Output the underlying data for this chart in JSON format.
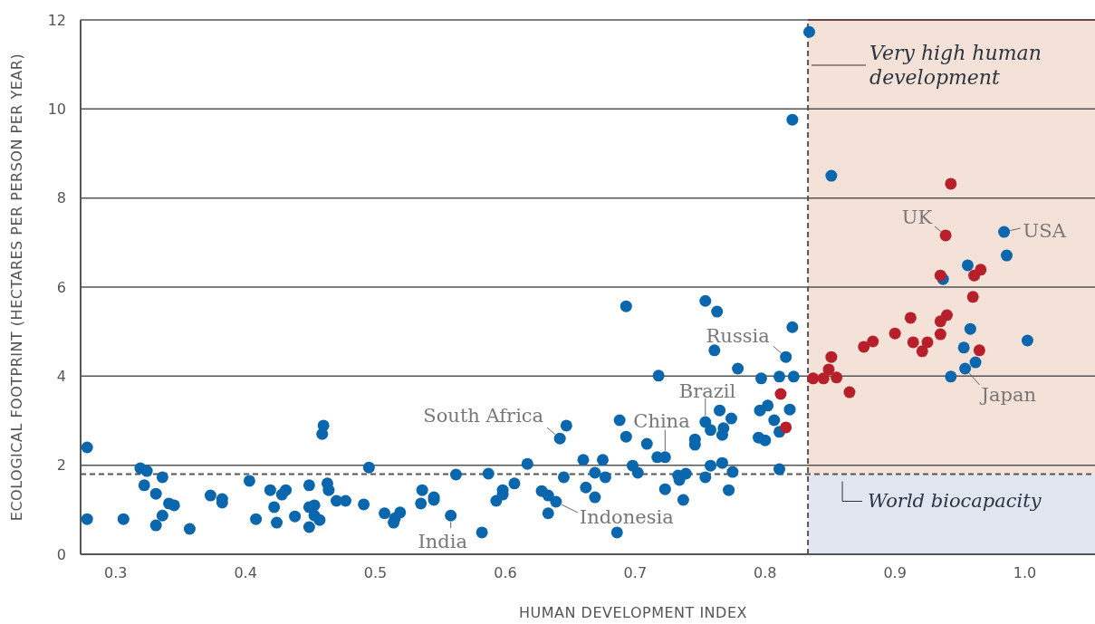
{
  "chart_data": {
    "type": "scatter",
    "xlabel": "HUMAN DEVELOPMENT INDEX",
    "ylabel": "ECOLOGICAL FOOTPRINT (HECTARES PER PERSON PER YEAR)",
    "xlim": [
      0.273,
      1.054
    ],
    "ylim": [
      0,
      12
    ],
    "xticks": [
      0.3,
      0.4,
      0.5,
      0.6,
      0.7,
      0.8,
      0.9,
      {
        "value": 1,
        "label": "1.0"
      }
    ],
    "yticks": [
      0,
      2,
      4,
      6,
      8,
      10,
      12
    ],
    "grid": "y",
    "marker": "circle",
    "series": [
      {
        "color": "#0a67ad",
        "x": [
          0.278,
          0.278,
          0.306,
          0.319,
          0.324,
          0.322,
          0.331,
          0.336,
          0.341,
          0.345,
          0.336,
          0.331,
          0.357,
          0.373,
          0.382,
          0.382,
          0.403,
          0.408,
          0.419,
          0.422,
          0.424,
          0.428,
          0.431,
          0.438,
          0.449,
          0.449,
          0.449,
          0.453,
          0.453,
          0.457,
          0.46,
          0.459,
          0.463,
          0.464,
          0.47,
          0.477,
          0.491,
          0.495,
          0.507,
          0.514,
          0.515,
          0.519,
          0.535,
          0.536,
          0.545,
          0.545,
          0.558,
          0.562,
          0.582,
          0.587,
          0.593,
          0.598,
          0.598,
          0.607,
          0.617,
          0.628,
          0.633,
          0.633,
          0.639,
          0.642,
          0.647,
          0.645,
          0.66,
          0.662,
          0.669,
          0.669,
          0.675,
          0.677,
          0.686,
          0.688,
          0.693,
          0.693,
          0.698,
          0.702,
          0.709,
          0.718,
          0.717,
          0.723,
          0.723,
          0.733,
          0.734,
          0.737,
          0.739,
          0.746,
          0.746,
          0.754,
          0.754,
          0.758,
          0.758,
          0.767,
          0.765,
          0.768,
          0.767,
          0.774,
          0.775,
          0.772,
          0.754,
          0.763,
          0.761,
          0.779,
          0.797,
          0.811,
          0.822,
          0.821,
          0.816,
          0.796,
          0.802,
          0.819,
          0.807,
          0.811,
          0.795,
          0.8,
          0.811,
          0.834,
          0.821,
          0.851,
          0.984,
          0.986,
          0.956,
          0.937,
          0.958,
          1.002,
          0.953,
          0.962,
          0.954,
          0.943
        ],
        "values": [
          2.4,
          0.79,
          0.79,
          1.93,
          1.87,
          1.55,
          1.36,
          1.73,
          1.14,
          1.1,
          0.87,
          0.65,
          0.57,
          1.32,
          1.24,
          1.16,
          1.65,
          0.79,
          1.44,
          1.06,
          0.71,
          1.34,
          1.44,
          0.85,
          1.55,
          1.06,
          0.61,
          1.1,
          0.87,
          0.77,
          2.89,
          2.7,
          1.59,
          1.44,
          1.2,
          1.2,
          1.12,
          1.95,
          0.92,
          0.71,
          0.81,
          0.94,
          1.14,
          1.44,
          1.28,
          1.22,
          0.87,
          1.79,
          0.49,
          1.81,
          1.2,
          1.44,
          1.34,
          1.59,
          2.03,
          1.42,
          1.32,
          0.92,
          1.18,
          2.6,
          2.89,
          1.73,
          2.12,
          1.5,
          1.28,
          1.83,
          2.12,
          1.73,
          0.49,
          3.01,
          2.64,
          5.57,
          1.99,
          1.83,
          2.48,
          4.01,
          2.18,
          2.18,
          1.46,
          1.77,
          1.67,
          1.22,
          1.81,
          2.58,
          2.46,
          2.97,
          1.73,
          2.79,
          1.99,
          2.05,
          3.23,
          2.83,
          2.68,
          3.05,
          1.85,
          1.44,
          5.69,
          5.45,
          4.58,
          4.17,
          3.95,
          3.99,
          3.99,
          5.1,
          4.43,
          3.23,
          3.34,
          3.25,
          3.01,
          2.75,
          2.62,
          2.56,
          1.91,
          11.73,
          9.76,
          8.5,
          7.24,
          6.71,
          6.49,
          6.18,
          5.06,
          4.8,
          4.64,
          4.31,
          4.17,
          3.99
        ]
      },
      {
        "color": "#b71f2b",
        "x": [
          0.812,
          0.816,
          0.943,
          0.939,
          0.935,
          0.961,
          0.966,
          0.96,
          0.94,
          0.935,
          0.912,
          0.9,
          0.935,
          0.914,
          0.925,
          0.921,
          0.965,
          0.883,
          0.876,
          0.851,
          0.849,
          0.837,
          0.845,
          0.855,
          0.865
        ],
        "values": [
          3.6,
          2.85,
          8.32,
          7.16,
          6.26,
          6.26,
          6.39,
          5.78,
          5.37,
          5.23,
          5.31,
          4.96,
          4.94,
          4.76,
          4.76,
          4.56,
          4.58,
          4.78,
          4.66,
          4.43,
          4.15,
          3.95,
          3.95,
          3.97,
          3.64
        ]
      }
    ],
    "bands": [
      {
        "axis": "x",
        "from": 0.833,
        "to": 1.054,
        "label": "Very high human development",
        "color": "#f4e1d8"
      },
      {
        "axis": "y",
        "from": 0,
        "to": 1.8,
        "color": "#e1e6f1"
      }
    ],
    "ref_lines": [
      {
        "axis": "x",
        "value": 0.833,
        "line_style": "dashed"
      },
      {
        "axis": "y",
        "value": 1.8,
        "line_style": "dashed",
        "label": "World biocapacity"
      }
    ],
    "annotations": [
      {
        "text": "India",
        "x": 0.558,
        "y": 0.87
      },
      {
        "text": "Indonesia",
        "x": 0.639,
        "y": 1.18
      },
      {
        "text": "South Africa",
        "x": 0.642,
        "y": 2.6
      },
      {
        "text": "China",
        "x": 0.723,
        "y": 2.18
      },
      {
        "text": "Brazil",
        "x": 0.754,
        "y": 2.97
      },
      {
        "text": "Russia",
        "x": 0.816,
        "y": 4.43
      },
      {
        "text": "UK",
        "x": 0.939,
        "y": 7.16
      },
      {
        "text": "USA",
        "x": 0.984,
        "y": 7.24
      },
      {
        "text": "Japan",
        "x": 0.954,
        "y": 4.17
      }
    ]
  }
}
